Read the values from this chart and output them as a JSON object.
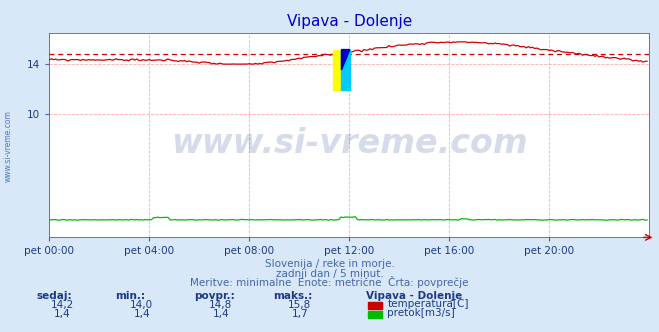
{
  "title": "Vipava - Dolenje",
  "title_color": "#0000cc",
  "bg_color": "#d8e8f8",
  "plot_bg_color": "#ffffff",
  "grid_color": "#ffaaaa",
  "xlabel_ticks": [
    "pet 00:00",
    "pet 04:00",
    "pet 08:00",
    "pet 12:00",
    "pet 16:00",
    "pet 20:00"
  ],
  "ylim": [
    0,
    16.5
  ],
  "xlim": [
    0,
    288
  ],
  "temp_avg": 14.8,
  "temp_color": "#cc0000",
  "flow_color": "#00bb00",
  "avg_line_color": "#cc0000",
  "watermark_text": "www.si-vreme.com",
  "watermark_color": "#1a3a8a",
  "watermark_alpha": 0.18,
  "watermark_fontsize": 24,
  "footer_line1": "Slovenija / reke in morje.",
  "footer_line2": "zadnji dan / 5 minut.",
  "footer_line3": "Meritve: minimalne  Enote: metrične  Črta: povprečje",
  "footer_color": "#4466aa",
  "legend_title": "Vipava - Dolenje",
  "legend_color": "#1a3a8a",
  "table_headers": [
    "sedaj:",
    "min.:",
    "povpr.:",
    "maks.:"
  ],
  "table_row1": [
    "14,2",
    "14,0",
    "14,8",
    "15,8"
  ],
  "table_row2": [
    "1,4",
    "1,4",
    "1,4",
    "1,7"
  ],
  "label_color": "#1a3a8a",
  "side_text": "www.si-vreme.com",
  "side_text_color": "#4466bb",
  "logo_yellow": "#ffff00",
  "logo_cyan": "#00ccff",
  "logo_blue": "#0000cc",
  "arrow_color": "#cc0000",
  "spine_color": "#4466aa"
}
